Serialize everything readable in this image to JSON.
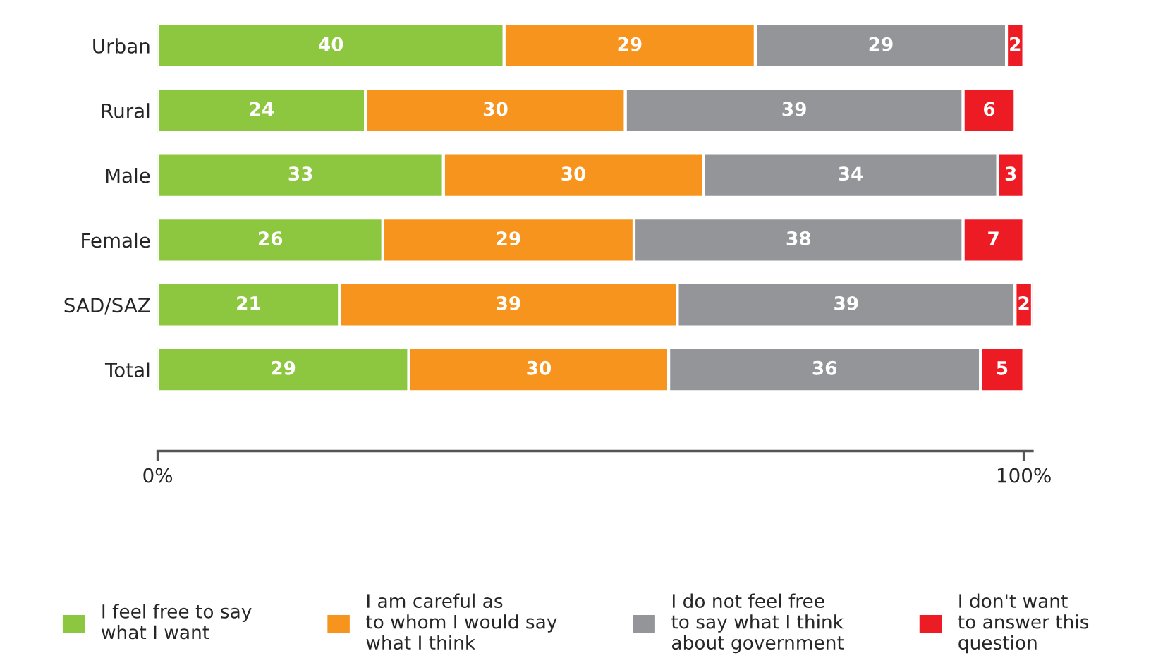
{
  "chart_data": {
    "type": "bar",
    "orientation": "horizontal",
    "stacked": true,
    "data_labels": true,
    "categories": [
      "Urban",
      "Rural",
      "Male",
      "Female",
      "SAD/SAZ",
      "Total"
    ],
    "series": [
      {
        "name": "I feel free to say\nwhat I want",
        "color": "#8dc63f",
        "values": [
          40,
          24,
          33,
          26,
          21,
          29
        ]
      },
      {
        "name": "I am careful as\nto whom I would say\nwhat I think",
        "color": "#f7941d",
        "values": [
          29,
          30,
          30,
          29,
          39,
          30
        ]
      },
      {
        "name": "I do not feel free\nto say what I think\nabout government",
        "color": "#939598",
        "values": [
          29,
          39,
          34,
          38,
          39,
          36
        ]
      },
      {
        "name": "I don't want\nto answer this\nquestion",
        "color": "#ed1c24",
        "values": [
          2,
          6,
          3,
          7,
          2,
          5
        ]
      }
    ],
    "xlim": [
      0,
      101
    ],
    "xticks": [
      {
        "value": 0,
        "label": "0%"
      },
      {
        "value": 100,
        "label": "100%"
      }
    ],
    "grid": false,
    "legend": "bottom"
  }
}
